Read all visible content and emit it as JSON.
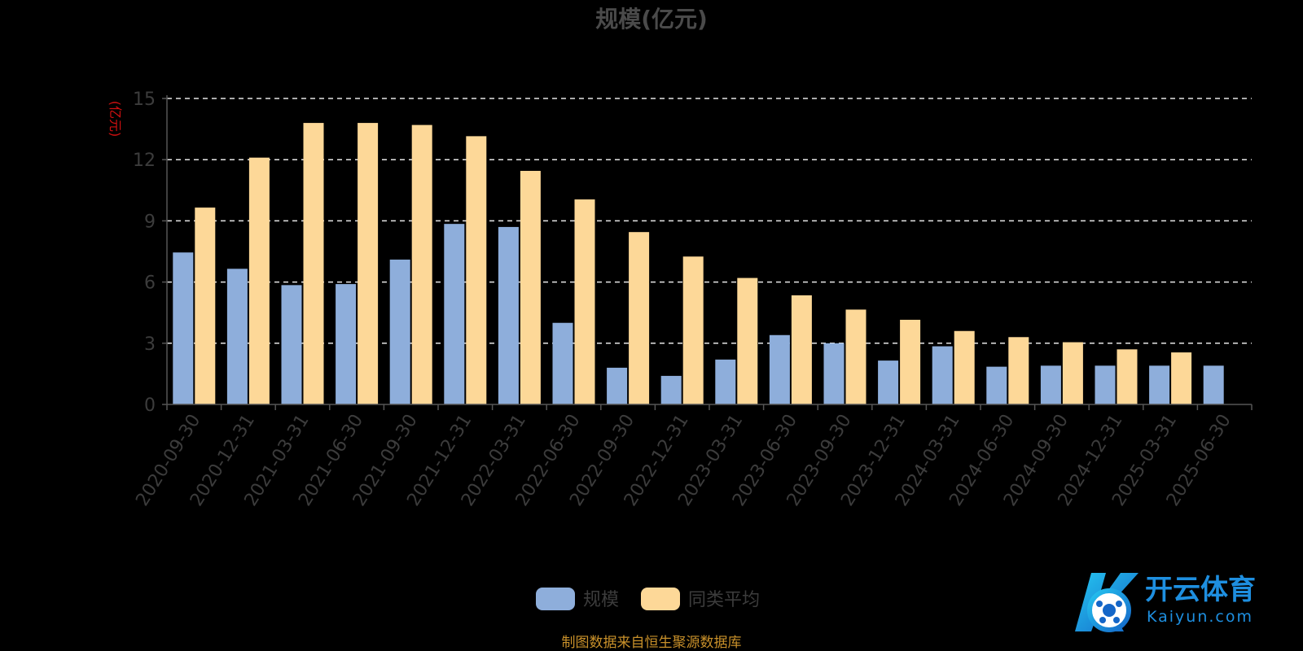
{
  "chart_data": {
    "type": "bar",
    "title": "规模(亿元)",
    "ylabel": "(亿元)",
    "ylim": [
      0,
      15
    ],
    "yticks": [
      0,
      3,
      6,
      9,
      12,
      15
    ],
    "grid": true,
    "legend_position": "bottom-center",
    "categories": [
      "2020-09-30",
      "2020-12-31",
      "2021-03-31",
      "2021-06-30",
      "2021-09-30",
      "2021-12-31",
      "2022-03-31",
      "2022-06-30",
      "2022-09-30",
      "2022-12-31",
      "2023-03-31",
      "2023-06-30",
      "2023-09-30",
      "2023-12-31",
      "2024-03-31",
      "2024-06-30",
      "2024-09-30",
      "2024-12-31",
      "2025-03-31",
      "2025-06-30"
    ],
    "series": [
      {
        "name": "规模",
        "color": "#8eaedb",
        "values": [
          7.45,
          6.65,
          5.85,
          5.9,
          7.1,
          8.85,
          8.7,
          4.0,
          1.8,
          1.4,
          2.2,
          3.4,
          3.0,
          2.15,
          2.85,
          1.85,
          1.9,
          1.9,
          1.9,
          1.9
        ]
      },
      {
        "name": "同类平均",
        "color": "#fdd898",
        "values": [
          9.65,
          12.1,
          13.8,
          13.8,
          13.7,
          13.15,
          11.45,
          10.05,
          8.45,
          7.25,
          6.2,
          5.35,
          4.65,
          4.15,
          3.6,
          3.3,
          3.05,
          2.7,
          2.55,
          null
        ]
      }
    ]
  },
  "footer": {
    "source": "制图数据来自恒生聚源数据库"
  },
  "watermark": {
    "name_cn": "开云体育",
    "name_en": "Kaiyun.com",
    "accent_color": "#1e8fe0"
  }
}
